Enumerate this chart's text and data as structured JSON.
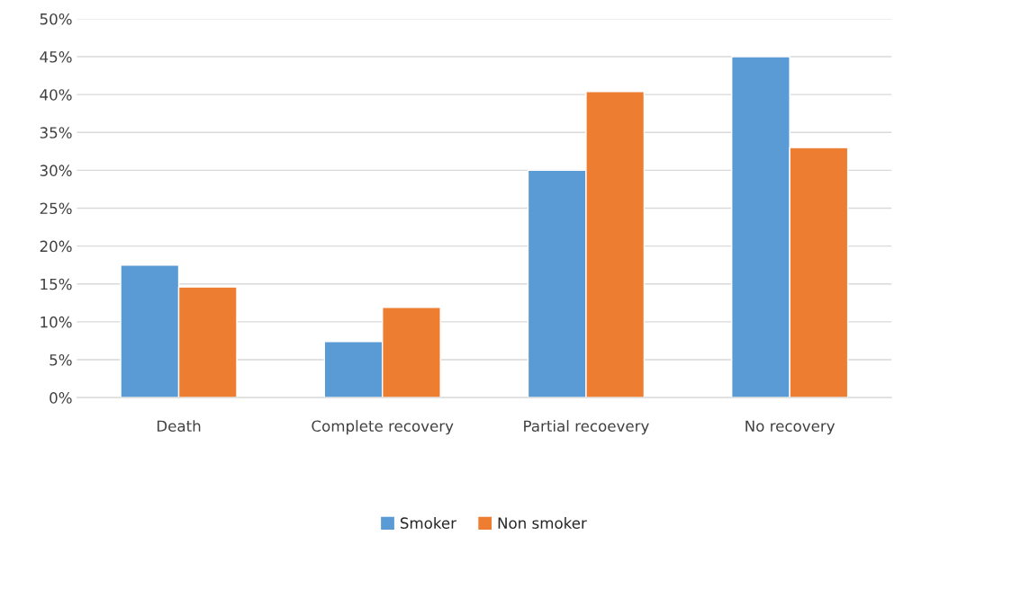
{
  "chart_data": {
    "type": "bar",
    "categories": [
      "Death",
      "Complete recovery",
      "Partial recoevery",
      "No recovery"
    ],
    "series": [
      {
        "name": "Smoker",
        "color": "#5b9bd5",
        "values": [
          17.5,
          7.4,
          30.0,
          45.0
        ]
      },
      {
        "name": "Non smoker",
        "color": "#ed7d31",
        "values": [
          14.6,
          11.9,
          40.4,
          33.0
        ]
      }
    ],
    "ylim": [
      0,
      50
    ],
    "yticks": [
      {
        "value": 0,
        "label": "0%"
      },
      {
        "value": 5,
        "label": "5%"
      },
      {
        "value": 10,
        "label": "10%"
      },
      {
        "value": 15,
        "label": "15%"
      },
      {
        "value": 20,
        "label": "20%"
      },
      {
        "value": 25,
        "label": "25%"
      },
      {
        "value": 30,
        "label": "30%"
      },
      {
        "value": 35,
        "label": "35%"
      },
      {
        "value": 40,
        "label": "40%"
      },
      {
        "value": 45,
        "label": "45%"
      },
      {
        "value": 50,
        "label": "50%"
      }
    ],
    "grid": "y",
    "legend": "bottom"
  }
}
